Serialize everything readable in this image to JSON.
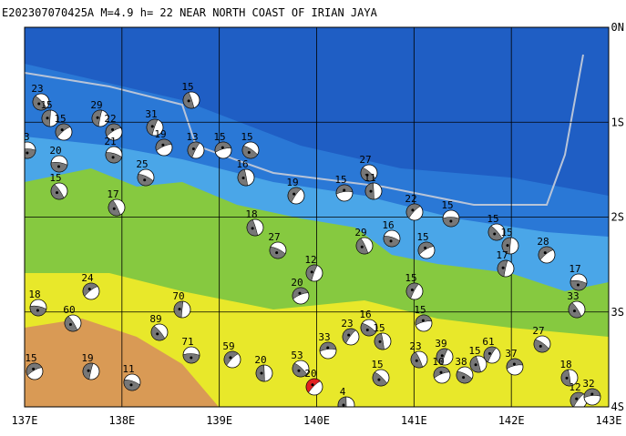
{
  "header": {
    "title": "E202307070425A M=4.9 h= 22 NEAR NORTH COAST OF IRIAN JAYA"
  },
  "axes": {
    "lat_labels": [
      "0N",
      "1S",
      "2S",
      "3S",
      "4S"
    ],
    "lon_labels": [
      "137E",
      "138E",
      "139E",
      "140E",
      "141E",
      "142E",
      "143E"
    ]
  },
  "events": {
    "depths": [
      13,
      23,
      15,
      15,
      20,
      15,
      29,
      22,
      21,
      17,
      31,
      19,
      25,
      15,
      13,
      15,
      15,
      16,
      19,
      15,
      27,
      11,
      22,
      15,
      15,
      15,
      28,
      17,
      33,
      17,
      15,
      16,
      29,
      12,
      20,
      27,
      18,
      15,
      15,
      16,
      15,
      23,
      33,
      53,
      20,
      59,
      71,
      89,
      70,
      24,
      18,
      60,
      19,
      15,
      11,
      23,
      39,
      10,
      38,
      15,
      61,
      37,
      27,
      18,
      12,
      32,
      15,
      4,
      20
    ]
  }
}
